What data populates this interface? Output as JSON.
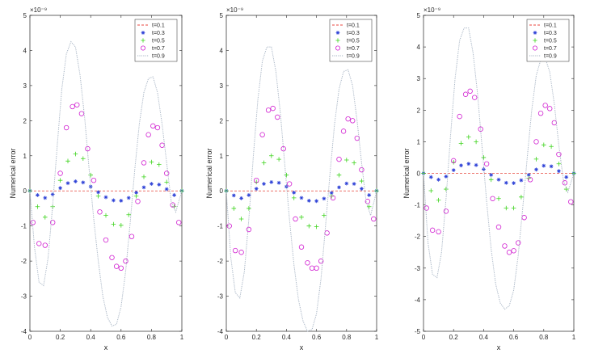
{
  "chart_data": [
    {
      "type": "scatter",
      "title": "",
      "xlabel": "x",
      "ylabel": "Numerical error",
      "exponent": "×10⁻⁹",
      "xlim": [
        0,
        1
      ],
      "ylim": [
        -4,
        5
      ],
      "xticks": [
        "0",
        "0.2",
        "0.4",
        "0.6",
        "0.8",
        "1"
      ],
      "yticks": [
        "-4",
        "-3",
        "-2",
        "-1",
        "0",
        "1",
        "2",
        "3",
        "4",
        "5"
      ],
      "legend_position": "top-right",
      "series": [
        {
          "name": "t=0.1",
          "color": "#e8463c",
          "marker": "dash",
          "x": [
            0,
            0.05,
            0.1,
            0.15,
            0.2,
            0.25,
            0.3,
            0.35,
            0.4,
            0.45,
            0.5,
            0.55,
            0.6,
            0.65,
            0.7,
            0.75,
            0.8,
            0.85,
            0.9,
            0.95,
            1
          ],
          "y": [
            0,
            0,
            0,
            0,
            0,
            0,
            0,
            0,
            0,
            0,
            0,
            0,
            0,
            0,
            0,
            0,
            0,
            0,
            0,
            0,
            0
          ]
        },
        {
          "name": "t=0.3",
          "color": "#2b3fd6",
          "marker": "star",
          "x": [
            0,
            0.05,
            0.1,
            0.15,
            0.2,
            0.25,
            0.3,
            0.35,
            0.4,
            0.45,
            0.5,
            0.55,
            0.6,
            0.65,
            0.7,
            0.75,
            0.8,
            0.85,
            0.9,
            0.95,
            1
          ],
          "y": [
            0,
            -0.12,
            -0.2,
            -0.1,
            0.08,
            0.22,
            0.27,
            0.24,
            0.12,
            -0.04,
            -0.18,
            -0.27,
            -0.28,
            -0.2,
            -0.05,
            0.1,
            0.2,
            0.18,
            0.05,
            -0.12,
            0
          ]
        },
        {
          "name": "t=0.5",
          "color": "#3fd41e",
          "marker": "plus",
          "x": [
            0,
            0.05,
            0.1,
            0.15,
            0.2,
            0.25,
            0.3,
            0.35,
            0.4,
            0.45,
            0.5,
            0.55,
            0.6,
            0.65,
            0.7,
            0.75,
            0.8,
            0.85,
            0.9,
            0.95,
            1
          ],
          "y": [
            0,
            -0.45,
            -0.75,
            -0.45,
            0.3,
            0.85,
            1.05,
            0.92,
            0.45,
            -0.15,
            -0.7,
            -0.95,
            -0.98,
            -0.68,
            -0.15,
            0.4,
            0.82,
            0.75,
            0.25,
            -0.45,
            0
          ]
        },
        {
          "name": "t=0.7",
          "color": "#d11fd1",
          "marker": "circle",
          "x": [
            0.02,
            0.06,
            0.1,
            0.15,
            0.2,
            0.24,
            0.28,
            0.31,
            0.34,
            0.38,
            0.42,
            0.46,
            0.5,
            0.54,
            0.57,
            0.6,
            0.63,
            0.67,
            0.71,
            0.75,
            0.78,
            0.81,
            0.84,
            0.87,
            0.9,
            0.94,
            0.98
          ],
          "y": [
            -0.9,
            -1.5,
            -1.55,
            -0.9,
            0.5,
            1.8,
            2.4,
            2.45,
            2.2,
            1.2,
            0.3,
            -0.6,
            -1.4,
            -1.9,
            -2.15,
            -2.2,
            -2.0,
            -1.3,
            -0.3,
            0.8,
            1.6,
            1.85,
            1.8,
            1.3,
            0.5,
            -0.4,
            -0.9
          ]
        },
        {
          "name": "t=0.9",
          "color": "#a7b4c4",
          "marker": "line",
          "x": [
            0,
            0.03,
            0.06,
            0.09,
            0.12,
            0.15,
            0.18,
            0.21,
            0.24,
            0.27,
            0.3,
            0.33,
            0.36,
            0.39,
            0.42,
            0.45,
            0.48,
            0.51,
            0.54,
            0.57,
            0.6,
            0.63,
            0.66,
            0.69,
            0.72,
            0.75,
            0.78,
            0.81,
            0.84,
            0.87,
            0.9,
            0.93,
            0.96,
            1
          ],
          "y": [
            0,
            -1.6,
            -2.6,
            -2.7,
            -1.9,
            -0.4,
            1.3,
            2.9,
            3.9,
            4.25,
            4.1,
            3.3,
            2.1,
            0.6,
            -0.8,
            -2.0,
            -3.0,
            -3.6,
            -3.85,
            -3.8,
            -3.3,
            -2.3,
            -0.9,
            0.6,
            1.9,
            2.8,
            3.2,
            3.25,
            2.8,
            1.9,
            0.8,
            -0.3,
            -0.6,
            0
          ]
        }
      ]
    },
    {
      "type": "scatter",
      "title": "",
      "xlabel": "x",
      "ylabel": "Numerical error",
      "exponent": "×10⁻⁹",
      "xlim": [
        0,
        1
      ],
      "ylim": [
        -4,
        5
      ],
      "xticks": [
        "0",
        "0.2",
        "0.4",
        "0.6",
        "0.8",
        "1"
      ],
      "yticks": [
        "-4",
        "-3",
        "-2",
        "-1",
        "0",
        "1",
        "2",
        "3",
        "4",
        "5"
      ],
      "legend_position": "top-right",
      "series": [
        {
          "name": "t=0.1",
          "color": "#e8463c",
          "marker": "dash",
          "x": [
            0,
            0.05,
            0.1,
            0.15,
            0.2,
            0.25,
            0.3,
            0.35,
            0.4,
            0.45,
            0.5,
            0.55,
            0.6,
            0.65,
            0.7,
            0.75,
            0.8,
            0.85,
            0.9,
            0.95,
            1
          ],
          "y": [
            0,
            0,
            0,
            0,
            0,
            0,
            0,
            0,
            0,
            0,
            0,
            0,
            0,
            0,
            0,
            0,
            0,
            0,
            0,
            0,
            0
          ]
        },
        {
          "name": "t=0.3",
          "color": "#2b3fd6",
          "marker": "star",
          "x": [
            0,
            0.05,
            0.1,
            0.15,
            0.2,
            0.25,
            0.3,
            0.35,
            0.4,
            0.45,
            0.5,
            0.55,
            0.6,
            0.65,
            0.7,
            0.75,
            0.8,
            0.85,
            0.9,
            0.95,
            1
          ],
          "y": [
            0,
            -0.13,
            -0.21,
            -0.12,
            0.06,
            0.2,
            0.25,
            0.23,
            0.12,
            -0.05,
            -0.2,
            -0.28,
            -0.29,
            -0.22,
            -0.06,
            0.1,
            0.21,
            0.2,
            0.06,
            -0.12,
            0
          ]
        },
        {
          "name": "t=0.5",
          "color": "#3fd41e",
          "marker": "plus",
          "x": [
            0,
            0.05,
            0.1,
            0.15,
            0.2,
            0.25,
            0.3,
            0.35,
            0.4,
            0.45,
            0.5,
            0.55,
            0.6,
            0.65,
            0.7,
            0.75,
            0.8,
            0.85,
            0.9,
            0.95,
            1
          ],
          "y": [
            0,
            -0.5,
            -0.8,
            -0.5,
            0.25,
            0.8,
            1.0,
            0.9,
            0.45,
            -0.2,
            -0.75,
            -1.0,
            -1.02,
            -0.7,
            -0.15,
            0.45,
            0.88,
            0.8,
            0.28,
            -0.45,
            0
          ]
        },
        {
          "name": "t=0.7",
          "color": "#d11fd1",
          "marker": "circle",
          "x": [
            0.02,
            0.06,
            0.1,
            0.15,
            0.2,
            0.24,
            0.28,
            0.31,
            0.34,
            0.38,
            0.42,
            0.46,
            0.5,
            0.54,
            0.57,
            0.6,
            0.63,
            0.67,
            0.71,
            0.75,
            0.78,
            0.81,
            0.84,
            0.87,
            0.9,
            0.94,
            0.98
          ],
          "y": [
            -1.0,
            -1.7,
            -1.75,
            -1.1,
            0.3,
            1.6,
            2.3,
            2.35,
            2.1,
            1.2,
            0.2,
            -0.8,
            -1.6,
            -2.05,
            -2.2,
            -2.2,
            -2.0,
            -1.2,
            -0.2,
            0.9,
            1.7,
            2.05,
            2.0,
            1.5,
            0.6,
            -0.3,
            -0.8
          ]
        },
        {
          "name": "t=0.9",
          "color": "#a7b4c4",
          "marker": "line",
          "x": [
            0,
            0.03,
            0.06,
            0.09,
            0.12,
            0.15,
            0.18,
            0.21,
            0.24,
            0.27,
            0.3,
            0.33,
            0.36,
            0.39,
            0.42,
            0.45,
            0.48,
            0.51,
            0.54,
            0.57,
            0.6,
            0.63,
            0.66,
            0.69,
            0.72,
            0.75,
            0.78,
            0.81,
            0.84,
            0.87,
            0.9,
            0.93,
            0.96,
            1
          ],
          "y": [
            0,
            -1.9,
            -2.9,
            -3.05,
            -2.3,
            -0.8,
            1.0,
            2.6,
            3.7,
            4.1,
            4.1,
            3.4,
            2.2,
            0.7,
            -0.8,
            -2.1,
            -3.1,
            -3.7,
            -4.0,
            -3.95,
            -3.5,
            -2.5,
            -1.0,
            0.5,
            1.9,
            2.9,
            3.4,
            3.45,
            3.0,
            2.0,
            0.8,
            -0.3,
            -0.7,
            0
          ]
        }
      ]
    },
    {
      "type": "scatter",
      "title": "",
      "xlabel": "x",
      "ylabel": "Numerical error",
      "exponent": "×10⁻⁹",
      "xlim": [
        0,
        1
      ],
      "ylim": [
        -5,
        5
      ],
      "xticks": [
        "0",
        "0.2",
        "0.4",
        "0.6",
        "0.8",
        "1"
      ],
      "yticks": [
        "-5",
        "-4",
        "-3",
        "-2",
        "-1",
        "0",
        "1",
        "2",
        "3",
        "4",
        "5"
      ],
      "legend_position": "top-right",
      "series": [
        {
          "name": "t=0.1",
          "color": "#e8463c",
          "marker": "dash",
          "x": [
            0,
            0.05,
            0.1,
            0.15,
            0.2,
            0.25,
            0.3,
            0.35,
            0.4,
            0.45,
            0.5,
            0.55,
            0.6,
            0.65,
            0.7,
            0.75,
            0.8,
            0.85,
            0.9,
            0.95,
            1
          ],
          "y": [
            0,
            0,
            0,
            0,
            0,
            0,
            0,
            0,
            0,
            0,
            0,
            0,
            0,
            0,
            0,
            0,
            0,
            0,
            0,
            0,
            0
          ]
        },
        {
          "name": "t=0.3",
          "color": "#2b3fd6",
          "marker": "star",
          "x": [
            0,
            0.05,
            0.1,
            0.15,
            0.2,
            0.25,
            0.3,
            0.35,
            0.4,
            0.45,
            0.5,
            0.55,
            0.6,
            0.65,
            0.7,
            0.75,
            0.8,
            0.85,
            0.9,
            0.95,
            1
          ],
          "y": [
            0,
            -0.12,
            -0.2,
            -0.1,
            0.1,
            0.25,
            0.3,
            0.26,
            0.13,
            -0.05,
            -0.2,
            -0.3,
            -0.31,
            -0.22,
            -0.05,
            0.12,
            0.24,
            0.22,
            0.07,
            -0.12,
            0
          ]
        },
        {
          "name": "t=0.5",
          "color": "#3fd41e",
          "marker": "plus",
          "x": [
            0,
            0.05,
            0.1,
            0.15,
            0.2,
            0.25,
            0.3,
            0.35,
            0.4,
            0.45,
            0.5,
            0.55,
            0.6,
            0.65,
            0.7,
            0.75,
            0.8,
            0.85,
            0.9,
            0.95,
            1
          ],
          "y": [
            0,
            -0.55,
            -0.85,
            -0.5,
            0.35,
            0.95,
            1.15,
            1.0,
            0.5,
            -0.2,
            -0.8,
            -1.1,
            -1.1,
            -0.75,
            -0.15,
            0.45,
            0.9,
            0.85,
            0.3,
            -0.5,
            0
          ]
        },
        {
          "name": "t=0.7",
          "color": "#d11fd1",
          "marker": "circle",
          "x": [
            0.02,
            0.06,
            0.1,
            0.15,
            0.2,
            0.24,
            0.28,
            0.31,
            0.34,
            0.38,
            0.42,
            0.46,
            0.5,
            0.54,
            0.57,
            0.6,
            0.63,
            0.67,
            0.71,
            0.75,
            0.78,
            0.81,
            0.84,
            0.87,
            0.9,
            0.94,
            0.98
          ],
          "y": [
            -1.1,
            -1.8,
            -1.85,
            -1.2,
            0.4,
            1.8,
            2.5,
            2.6,
            2.4,
            1.4,
            0.3,
            -0.8,
            -1.7,
            -2.3,
            -2.5,
            -2.45,
            -2.2,
            -1.4,
            -0.2,
            1.0,
            1.9,
            2.15,
            2.05,
            1.6,
            0.6,
            -0.3,
            -0.9
          ]
        },
        {
          "name": "t=0.9",
          "color": "#a7b4c4",
          "marker": "line",
          "x": [
            0,
            0.03,
            0.06,
            0.09,
            0.12,
            0.15,
            0.18,
            0.21,
            0.24,
            0.27,
            0.3,
            0.33,
            0.36,
            0.39,
            0.42,
            0.45,
            0.48,
            0.51,
            0.54,
            0.57,
            0.6,
            0.63,
            0.66,
            0.69,
            0.72,
            0.75,
            0.78,
            0.81,
            0.84,
            0.87,
            0.9,
            0.93,
            0.96,
            1
          ],
          "y": [
            0,
            -2.2,
            -3.2,
            -3.3,
            -2.5,
            -0.8,
            1.2,
            3.0,
            4.2,
            4.6,
            4.6,
            3.8,
            2.5,
            0.8,
            -0.9,
            -2.4,
            -3.5,
            -4.1,
            -4.3,
            -4.2,
            -3.7,
            -2.6,
            -1.1,
            0.5,
            2.0,
            3.1,
            3.6,
            3.65,
            3.2,
            2.2,
            0.9,
            -0.2,
            -0.6,
            0
          ]
        }
      ]
    }
  ]
}
